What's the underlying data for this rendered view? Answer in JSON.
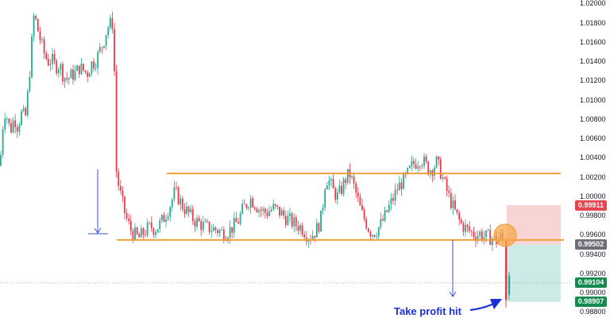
{
  "chart_data": {
    "type": "candlestick",
    "yaxis_side": "right",
    "ylim": [
      0.9874,
      1.0204
    ],
    "yticks": [
      "1.02000",
      "1.01800",
      "1.01600",
      "1.01400",
      "1.01200",
      "1.01000",
      "1.00800",
      "1.00600",
      "1.00400",
      "1.00200",
      "1.00000",
      "0.99800",
      "0.99600",
      "0.99400",
      "0.99200",
      "0.99000",
      "0.98800"
    ],
    "price_tags": [
      {
        "label": "0.99911",
        "value": 0.99911,
        "color": "#e5454f"
      },
      {
        "label": "0.99502",
        "value": 0.99502,
        "color": "#6d6f78"
      },
      {
        "label": "0.99104",
        "value": 0.99104,
        "color": "#138a4e"
      },
      {
        "label": "0.98907",
        "value": 0.98907,
        "color": "#138a4e"
      }
    ],
    "support_level": 0.9955,
    "resistance_level": 1.0024,
    "stop_zone": [
      0.99502,
      0.99911
    ],
    "target_zone": [
      0.98907,
      0.99502
    ],
    "current_price": 0.99104,
    "annotation": "Take profit hit",
    "colors": {
      "up": "#22ab94",
      "down": "#f23645",
      "level": "#f39c2b",
      "arrow": "#3b4fd8",
      "stop": "#f6c5c5",
      "target": "#bfe6e0"
    }
  }
}
